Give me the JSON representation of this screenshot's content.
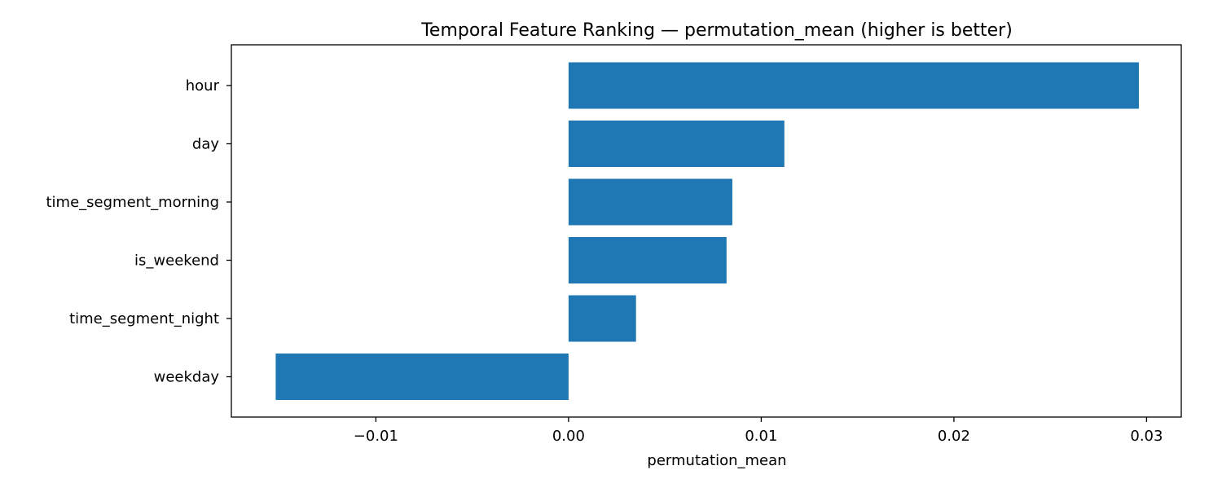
{
  "chart_data": {
    "type": "bar",
    "orientation": "horizontal",
    "title": "Temporal Feature Ranking — permutation_mean (higher is better)",
    "xlabel": "permutation_mean",
    "ylabel": "",
    "categories": [
      "hour",
      "day",
      "time_segment_morning",
      "is_weekend",
      "time_segment_night",
      "weekday"
    ],
    "values": [
      0.0296,
      0.0112,
      0.0085,
      0.0082,
      0.0035,
      -0.0152
    ],
    "xlim": [
      -0.0175,
      0.0318
    ],
    "xticks": [
      -0.01,
      0.0,
      0.01,
      0.02,
      0.03
    ],
    "xtick_labels": [
      "−0.01",
      "0.00",
      "0.01",
      "0.02",
      "0.03"
    ],
    "bar_color": "#1f77b4",
    "grid": false,
    "legend": "none"
  }
}
